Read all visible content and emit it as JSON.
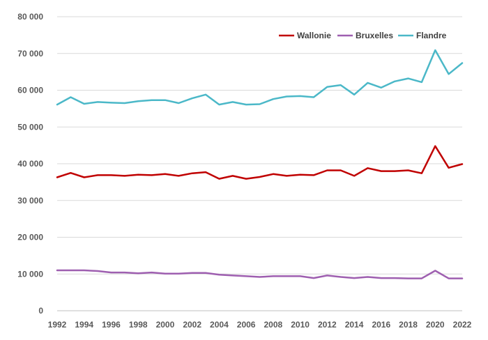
{
  "chart_data": {
    "type": "line",
    "x": [
      1992,
      1993,
      1994,
      1995,
      1996,
      1997,
      1998,
      1999,
      2000,
      2001,
      2002,
      2003,
      2004,
      2005,
      2006,
      2007,
      2008,
      2009,
      2010,
      2011,
      2012,
      2013,
      2014,
      2015,
      2016,
      2017,
      2018,
      2019,
      2020,
      2021,
      2022
    ],
    "x_tick_labels": [
      "1992",
      "1994",
      "1996",
      "1998",
      "2000",
      "2002",
      "2004",
      "2006",
      "2008",
      "2010",
      "2012",
      "2014",
      "2016",
      "2018",
      "2020",
      "2022"
    ],
    "y_tick_labels": [
      "0",
      "10 000",
      "20 000",
      "30 000",
      "40 000",
      "50 000",
      "60 000",
      "70 000",
      "80 000"
    ],
    "ylim": [
      0,
      80000
    ],
    "grid": "horizontal",
    "legend_position": "top-right",
    "series": [
      {
        "name": "Wallonie",
        "color": "#c00000",
        "values": [
          36300,
          37500,
          36300,
          36900,
          36900,
          36700,
          37000,
          36900,
          37200,
          36700,
          37400,
          37700,
          35900,
          36700,
          35900,
          36400,
          37200,
          36700,
          37000,
          36900,
          38200,
          38200,
          36700,
          38800,
          38000,
          38000,
          38200,
          37400,
          44800,
          38900,
          39900
        ]
      },
      {
        "name": "Bruxelles",
        "color": "#9e5fb0",
        "values": [
          11000,
          11000,
          11000,
          10800,
          10400,
          10400,
          10200,
          10400,
          10100,
          10100,
          10300,
          10300,
          9800,
          9600,
          9400,
          9200,
          9400,
          9400,
          9400,
          8900,
          9600,
          9200,
          8900,
          9200,
          8900,
          8900,
          8800,
          8800,
          10900,
          8800,
          8800
        ]
      },
      {
        "name": "Flandre",
        "color": "#4bb8c8",
        "values": [
          56100,
          58100,
          56300,
          56800,
          56600,
          56500,
          57000,
          57300,
          57300,
          56500,
          57800,
          58800,
          56100,
          56800,
          56100,
          56200,
          57600,
          58300,
          58400,
          58100,
          60900,
          61400,
          58800,
          62000,
          60700,
          62400,
          63200,
          62200,
          70900,
          64400,
          67400
        ]
      }
    ]
  }
}
